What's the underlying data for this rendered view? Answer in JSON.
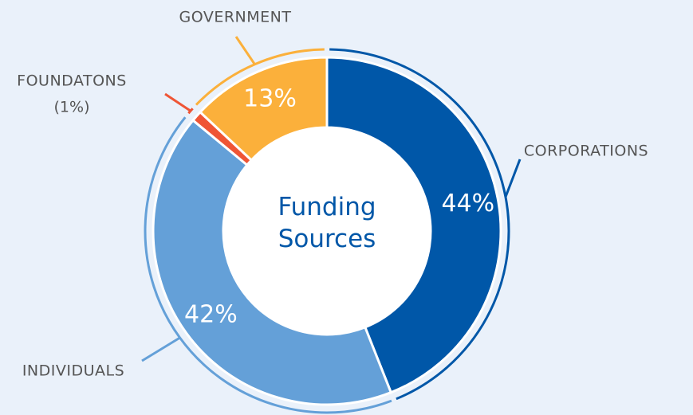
{
  "chart_data": {
    "type": "pie",
    "title": "Funding Sources",
    "categories": [
      "CORPORATIONS",
      "INDIVIDUALS",
      "FOUNDATONS",
      "GOVERNMENT"
    ],
    "values": [
      44,
      42,
      1,
      13
    ],
    "value_labels": [
      "44%",
      "42%",
      "(1%)",
      "13%"
    ],
    "colors": [
      "#0057a8",
      "#64a0d8",
      "#ef5535",
      "#fbb03b"
    ],
    "donut": true
  }
}
